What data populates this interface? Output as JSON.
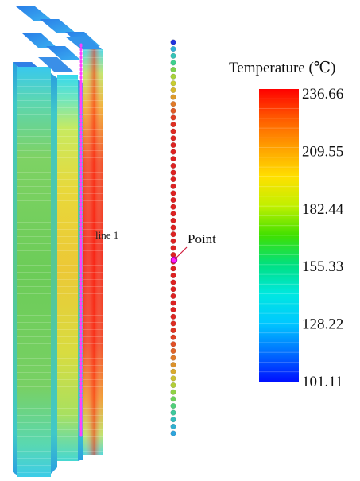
{
  "legend": {
    "title": "Temperature (℃)",
    "ticks": [
      "236.66",
      "209.55",
      "182.44",
      "155.33",
      "128.22",
      "101.11"
    ]
  },
  "annotations": {
    "line_label": "line 1",
    "point_label": "Point"
  },
  "colors": {
    "max": "#ff0000",
    "mid_high": "#ffff00",
    "mid": "#00ff00",
    "mid_low": "#00ffff",
    "min": "#0000ff",
    "probe_line": "#ff00ff"
  },
  "probe_point_count": 58,
  "probe_point_colors": [
    "#2233dd",
    "#2fb0d8",
    "#35c4b8",
    "#3fd08e",
    "#7fd24c",
    "#a8d23a",
    "#c8cc30",
    "#d8b82c",
    "#dd9a2a",
    "#e07a28",
    "#e05a26",
    "#df3e24",
    "#de2f22",
    "#dd2a22",
    "#dd2622",
    "#dd2422",
    "#dd2222",
    "#dd2222",
    "#dd2222",
    "#dd2222",
    "#dd2222",
    "#dd2222",
    "#dd2222",
    "#dd2222",
    "#dd2222",
    "#dd2222",
    "#dd2222",
    "#dd2222",
    "#dd2222",
    "#dd2222",
    "#dd2222",
    "#dd2222",
    "#dd2222",
    "#dd2222",
    "#dd2222",
    "#dd2222",
    "#dd2222",
    "#dd2222",
    "#dd2222",
    "#dd2222",
    "#dd2622",
    "#dd2c22",
    "#de3422",
    "#df4024",
    "#e05026",
    "#e06428",
    "#df7a2a",
    "#dc922c",
    "#d8aa2e",
    "#ccc032",
    "#b2ce38",
    "#90d244",
    "#6cd25a",
    "#50d07a",
    "#3ec89c",
    "#34bcbc",
    "#2fb0d0",
    "#2ea4dc"
  ]
}
